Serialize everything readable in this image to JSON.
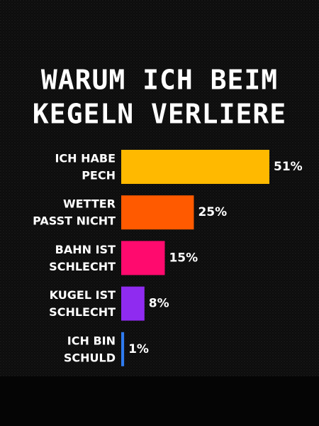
{
  "chart_data": {
    "type": "bar",
    "orientation": "horizontal",
    "title": [
      "WARUM ICH BEIM",
      "KEGELN VERLIERE"
    ],
    "categories": [
      [
        "ICH HABE",
        "PECH"
      ],
      [
        "WETTER",
        "PASST NICHT"
      ],
      [
        "BAHN IST",
        "SCHLECHT"
      ],
      [
        "KUGEL IST",
        "SCHLECHT"
      ],
      [
        "ICH BIN",
        "SCHULD"
      ]
    ],
    "values": [
      51,
      25,
      15,
      8,
      1
    ],
    "value_labels": [
      "51%",
      "25%",
      "15%",
      "8%",
      "1%"
    ],
    "colors": [
      "#ffb900",
      "#ff5a00",
      "#ff0a6e",
      "#8f2bf0",
      "#2f7bef"
    ]
  }
}
